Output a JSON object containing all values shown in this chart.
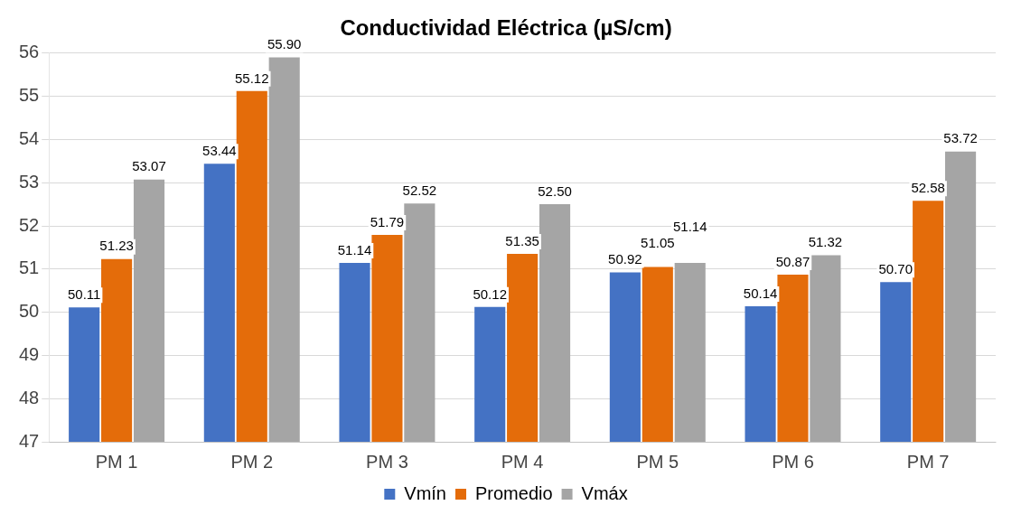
{
  "chart_data": {
    "type": "bar",
    "title": "Conductividad Eléctrica (µS/cm)",
    "categories": [
      "PM 1",
      "PM 2",
      "PM 3",
      "PM 4",
      "PM 5",
      "PM 6",
      "PM 7"
    ],
    "series": [
      {
        "name": "Vmín",
        "color": "#4472c4",
        "values": [
          50.11,
          53.44,
          51.14,
          50.12,
          50.92,
          50.14,
          50.7
        ],
        "value_labels": [
          "50.11",
          "53.44",
          "51.14",
          "50.12",
          "50.92",
          "50.14",
          "50.70"
        ]
      },
      {
        "name": "Promedio",
        "color": "#e46c0a",
        "values": [
          51.23,
          55.12,
          51.79,
          51.35,
          51.05,
          50.87,
          52.58
        ],
        "value_labels": [
          "51.23",
          "55.12",
          "51.79",
          "51.35",
          "51.05",
          "50.87",
          "52.58"
        ]
      },
      {
        "name": "Vmáx",
        "color": "#a5a5a5",
        "values": [
          53.07,
          55.9,
          52.52,
          52.5,
          51.14,
          51.32,
          53.72
        ],
        "value_labels": [
          "53.07",
          "55.90",
          "52.52",
          "52.50",
          "51.14",
          "51.32",
          "53.72"
        ]
      }
    ],
    "ylim": [
      47,
      56
    ],
    "yticks": [
      47,
      48,
      49,
      50,
      51,
      52,
      53,
      54,
      55,
      56
    ],
    "grid": "y",
    "legend": "bottom"
  }
}
